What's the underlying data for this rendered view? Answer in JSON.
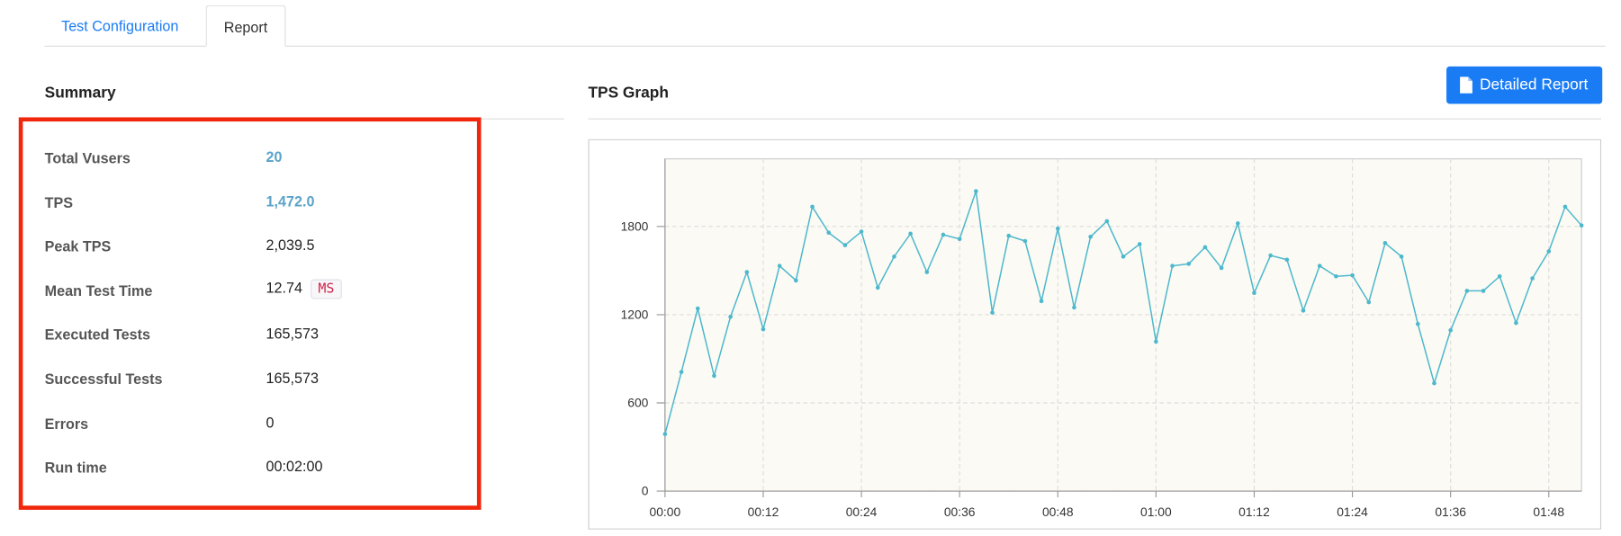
{
  "tabs": [
    "Test Configuration",
    "Report"
  ],
  "summary": {
    "title": "Summary",
    "rows": [
      {
        "label": "Total Vusers",
        "value": "20"
      },
      {
        "label": "TPS",
        "value": "1,472.0"
      },
      {
        "label": "Peak TPS",
        "value": "2,039.5"
      },
      {
        "label": "Mean Test Time",
        "value": "12.74",
        "unit": "MS"
      },
      {
        "label": "Executed Tests",
        "value": "165,573"
      },
      {
        "label": "Successful Tests",
        "value": "165,573"
      },
      {
        "label": "Errors",
        "value": "0"
      },
      {
        "label": "Run time",
        "value": "00:02:00"
      }
    ]
  },
  "graph": {
    "title": "TPS Graph",
    "button": "Detailed Report"
  },
  "chart_data": {
    "type": "line",
    "color": "#4db8cc",
    "x": [
      0,
      2,
      4,
      6,
      8,
      10,
      12,
      14,
      16,
      18,
      20,
      22,
      24,
      26,
      28,
      30,
      32,
      34,
      36,
      38,
      40,
      42,
      44,
      46,
      48,
      50,
      52,
      54,
      56,
      58,
      60,
      62,
      64,
      66,
      68,
      70,
      72,
      74,
      76,
      78,
      80,
      82,
      84,
      86,
      88,
      90,
      92,
      94,
      96,
      98,
      100,
      102,
      104,
      106,
      108,
      110,
      112
    ],
    "values": [
      388,
      810,
      1242,
      784,
      1186,
      1490,
      1101,
      1532,
      1433,
      1934,
      1758,
      1673,
      1765,
      1384,
      1595,
      1751,
      1490,
      1744,
      1715,
      2040,
      1214,
      1737,
      1701,
      1292,
      1786,
      1249,
      1730,
      1836,
      1595,
      1680,
      1017,
      1532,
      1546,
      1659,
      1518,
      1821,
      1348,
      1603,
      1574,
      1228,
      1532,
      1461,
      1468,
      1285,
      1687,
      1595,
      1137,
      734,
      1094,
      1362,
      1362,
      1461,
      1144,
      1447,
      1631,
      1934,
      1807
    ],
    "xlim": [
      0,
      112
    ],
    "ylim": [
      0,
      2260
    ],
    "xticks": [
      {
        "value": 0,
        "label": "00:00"
      },
      {
        "value": 12,
        "label": "00:12"
      },
      {
        "value": 24,
        "label": "00:24"
      },
      {
        "value": 36,
        "label": "00:36"
      },
      {
        "value": 48,
        "label": "00:48"
      },
      {
        "value": 60,
        "label": "01:00"
      },
      {
        "value": 72,
        "label": "01:12"
      },
      {
        "value": 84,
        "label": "01:24"
      },
      {
        "value": 96,
        "label": "01:36"
      },
      {
        "value": 108,
        "label": "01:48"
      }
    ],
    "yticks": [
      0,
      600,
      1200,
      1800
    ],
    "grid": true
  }
}
